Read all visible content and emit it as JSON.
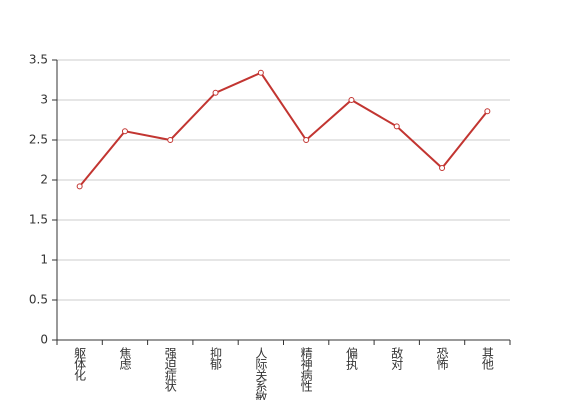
{
  "chart_data": {
    "type": "line",
    "categories": [
      "躯体化",
      "焦虑",
      "强迫症状",
      "抑郁",
      "人际关系敏感",
      "精神病性",
      "偏执",
      "敌对",
      "恐怖",
      "其他"
    ],
    "values": [
      1.92,
      2.61,
      2.5,
      3.09,
      3.34,
      2.5,
      3.0,
      2.67,
      2.15,
      2.86
    ],
    "color": "#c23531",
    "ylim": [
      0,
      3.5
    ],
    "yticks": [
      0,
      0.5,
      1,
      1.5,
      2,
      2.5,
      3,
      3.5
    ],
    "grid": true
  }
}
